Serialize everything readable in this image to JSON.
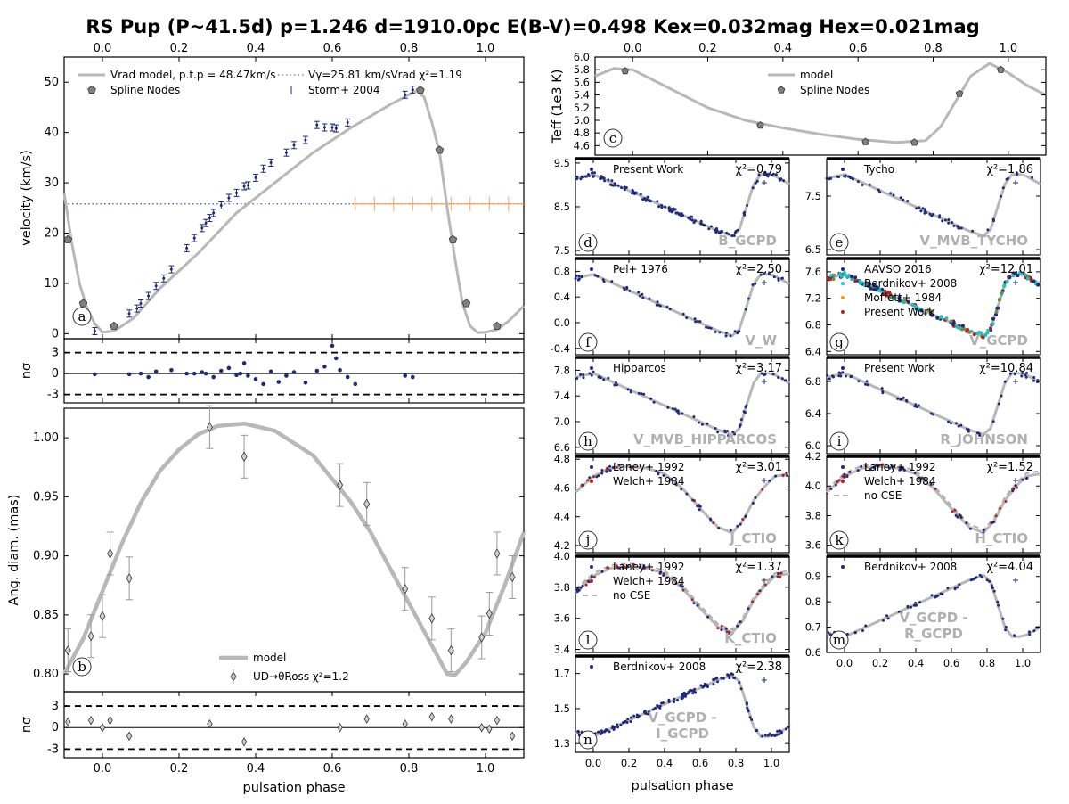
{
  "chart_data": {
    "type": "line",
    "title": "RS Pup (P~41.5d) p=1.246 d=1910.0pc E(B-V)=0.498 Kex=0.032mag Hex=0.021mag",
    "xlabel": "pulsation phase",
    "xlim": [
      -0.1,
      1.1
    ],
    "colors": {
      "model": "#b8b8b8",
      "data": "#1f2a7a",
      "accent": "#f4a460",
      "red": "#b22222",
      "cyan": "#20c0c0",
      "orange": "#ff9900",
      "node": "#808080"
    },
    "panels": [
      {
        "id": "a",
        "ylabel": "velocity (km/s)",
        "ylim": [
          -1,
          55
        ],
        "yticks": [
          0,
          10,
          20,
          30,
          40,
          50
        ],
        "legend": [
          "Vrad model, p.t.p = 48.47km/s",
          "Spline Nodes",
          "Vγ=25.81 km/sVrad χ²=1.19",
          "Storm+ 2004"
        ],
        "gamma": 25.81,
        "model": [
          [
            -0.1,
            28
          ],
          [
            -0.08,
            18
          ],
          [
            -0.06,
            10
          ],
          [
            -0.04,
            5
          ],
          [
            -0.02,
            2
          ],
          [
            0.0,
            0.3
          ],
          [
            0.03,
            0.5
          ],
          [
            0.08,
            3
          ],
          [
            0.15,
            9
          ],
          [
            0.25,
            16
          ],
          [
            0.35,
            24
          ],
          [
            0.45,
            30
          ],
          [
            0.55,
            36
          ],
          [
            0.65,
            41
          ],
          [
            0.75,
            45.5
          ],
          [
            0.8,
            47.5
          ],
          [
            0.82,
            48.3
          ],
          [
            0.84,
            47
          ],
          [
            0.86,
            42
          ],
          [
            0.88,
            36
          ],
          [
            0.9,
            25
          ],
          [
            0.92,
            15
          ],
          [
            0.94,
            6
          ],
          [
            0.96,
            1.5
          ],
          [
            0.98,
            0.2
          ],
          [
            1.0,
            0.3
          ],
          [
            1.03,
            0.8
          ],
          [
            1.06,
            2.5
          ],
          [
            1.1,
            5.5
          ]
        ],
        "nodes": [
          [
            -0.09,
            18.7
          ],
          [
            -0.05,
            6
          ],
          [
            0.03,
            1.5
          ],
          [
            0.83,
            48.4
          ],
          [
            0.88,
            36.5
          ],
          [
            0.915,
            18.7
          ],
          [
            0.95,
            6
          ],
          [
            1.03,
            1.5
          ]
        ],
        "data": [
          [
            -0.02,
            0.5
          ],
          [
            0.07,
            4
          ],
          [
            0.09,
            5
          ],
          [
            0.1,
            6
          ],
          [
            0.12,
            7.5
          ],
          [
            0.14,
            9.5
          ],
          [
            0.16,
            11
          ],
          [
            0.18,
            12.8
          ],
          [
            0.22,
            17
          ],
          [
            0.24,
            19
          ],
          [
            0.26,
            21
          ],
          [
            0.27,
            22
          ],
          [
            0.28,
            23
          ],
          [
            0.29,
            24
          ],
          [
            0.31,
            25.5
          ],
          [
            0.33,
            27
          ],
          [
            0.35,
            28
          ],
          [
            0.37,
            29.3
          ],
          [
            0.38,
            29.5
          ],
          [
            0.4,
            31
          ],
          [
            0.42,
            32.8
          ],
          [
            0.44,
            34
          ],
          [
            0.48,
            36
          ],
          [
            0.5,
            37.5
          ],
          [
            0.53,
            38.5
          ],
          [
            0.56,
            41.5
          ],
          [
            0.58,
            41
          ],
          [
            0.6,
            41
          ],
          [
            0.61,
            40.8
          ],
          [
            0.64,
            42
          ],
          [
            0.79,
            47.5
          ],
          [
            0.81,
            48.5
          ]
        ],
        "residuals": [
          [
            -0.02,
            -0.1
          ],
          [
            0.07,
            -0.1
          ],
          [
            0.1,
            0
          ],
          [
            0.12,
            -0.5
          ],
          [
            0.14,
            0.3
          ],
          [
            0.18,
            0.5
          ],
          [
            0.22,
            0
          ],
          [
            0.24,
            0
          ],
          [
            0.26,
            0.2
          ],
          [
            0.27,
            0
          ],
          [
            0.29,
            -0.5
          ],
          [
            0.31,
            0.4
          ],
          [
            0.33,
            0.8
          ],
          [
            0.35,
            -0.2
          ],
          [
            0.36,
            0
          ],
          [
            0.37,
            1.5
          ],
          [
            0.38,
            -0.3
          ],
          [
            0.4,
            -0.8
          ],
          [
            0.42,
            -1.5
          ],
          [
            0.44,
            0.3
          ],
          [
            0.46,
            -1.2
          ],
          [
            0.48,
            -0.3
          ],
          [
            0.5,
            0.2
          ],
          [
            0.53,
            -1.3
          ],
          [
            0.56,
            0.4
          ],
          [
            0.58,
            1
          ],
          [
            0.6,
            4
          ],
          [
            0.61,
            2.2
          ],
          [
            0.62,
            0.5
          ],
          [
            0.64,
            -0.5
          ],
          [
            0.66,
            -1.5
          ],
          [
            0.79,
            -0.3
          ],
          [
            0.81,
            -0.5
          ]
        ]
      },
      {
        "id": "b",
        "ylabel": "Ang. diam. (mas)",
        "ylim": [
          0.785,
          1.025
        ],
        "yticks": [
          0.8,
          0.85,
          0.9,
          0.95,
          1.0
        ],
        "legend": [
          "model",
          "UD→θRoss χ²=1.2"
        ],
        "model": [
          [
            -0.1,
            0.8
          ],
          [
            -0.05,
            0.83
          ],
          [
            0.0,
            0.87
          ],
          [
            0.05,
            0.91
          ],
          [
            0.1,
            0.945
          ],
          [
            0.15,
            0.972
          ],
          [
            0.2,
            0.99
          ],
          [
            0.25,
            1.003
          ],
          [
            0.3,
            1.01
          ],
          [
            0.37,
            1.012
          ],
          [
            0.45,
            1.006
          ],
          [
            0.55,
            0.985
          ],
          [
            0.65,
            0.945
          ],
          [
            0.7,
            0.92
          ],
          [
            0.75,
            0.89
          ],
          [
            0.8,
            0.86
          ],
          [
            0.85,
            0.83
          ],
          [
            0.9,
            0.8
          ],
          [
            0.92,
            0.799
          ],
          [
            0.95,
            0.81
          ],
          [
            1.0,
            0.835
          ],
          [
            1.05,
            0.875
          ],
          [
            1.1,
            0.92
          ]
        ],
        "data": [
          [
            -0.09,
            0.82
          ],
          [
            -0.03,
            0.832
          ],
          [
            0.0,
            0.849
          ],
          [
            0.02,
            0.902
          ],
          [
            0.07,
            0.881
          ],
          [
            0.28,
            1.009
          ],
          [
            0.37,
            0.984
          ],
          [
            0.62,
            0.96
          ],
          [
            0.69,
            0.944
          ],
          [
            0.79,
            0.872
          ],
          [
            0.86,
            0.847
          ],
          [
            0.91,
            0.82
          ],
          [
            0.99,
            0.831
          ],
          [
            1.01,
            0.851
          ],
          [
            1.03,
            0.902
          ],
          [
            1.07,
            0.882
          ]
        ],
        "residuals": [
          [
            -0.09,
            0.8
          ],
          [
            -0.03,
            1
          ],
          [
            0.0,
            0
          ],
          [
            0.02,
            1
          ],
          [
            0.07,
            -1.2
          ],
          [
            0.28,
            0.5
          ],
          [
            0.37,
            -2
          ],
          [
            0.62,
            0
          ],
          [
            0.69,
            1.2
          ],
          [
            0.79,
            0.5
          ],
          [
            0.86,
            1.5
          ],
          [
            0.91,
            1.2
          ],
          [
            0.99,
            0
          ],
          [
            1.01,
            -0.2
          ],
          [
            1.03,
            1
          ],
          [
            1.07,
            -1.2
          ]
        ]
      },
      {
        "id": "c",
        "ylabel": "Teff (1e3 K)",
        "ylim": [
          4.45,
          6.0
        ],
        "yticks": [
          4.6,
          4.8,
          5.0,
          5.2,
          5.4,
          5.6,
          5.8,
          6.0
        ],
        "legend": [
          "model",
          "Spline Nodes"
        ],
        "model": [
          [
            -0.1,
            5.7
          ],
          [
            -0.05,
            5.82
          ],
          [
            0.0,
            5.8
          ],
          [
            0.1,
            5.5
          ],
          [
            0.2,
            5.2
          ],
          [
            0.3,
            5.0
          ],
          [
            0.4,
            4.88
          ],
          [
            0.5,
            4.78
          ],
          [
            0.6,
            4.7
          ],
          [
            0.7,
            4.65
          ],
          [
            0.78,
            4.68
          ],
          [
            0.82,
            4.9
          ],
          [
            0.86,
            5.3
          ],
          [
            0.9,
            5.7
          ],
          [
            0.95,
            5.9
          ],
          [
            1.0,
            5.75
          ],
          [
            1.05,
            5.55
          ],
          [
            1.1,
            5.4
          ]
        ],
        "nodes": [
          [
            -0.02,
            5.78
          ],
          [
            0.34,
            4.92
          ],
          [
            0.62,
            4.66
          ],
          [
            0.75,
            4.65
          ],
          [
            0.87,
            5.42
          ],
          [
            0.98,
            5.8
          ]
        ]
      },
      {
        "id": "d",
        "ytop": 9.6,
        "ybot": 7.4,
        "yticks": [
          7.5,
          8.5,
          9.5
        ],
        "watermark": "B_GCPD",
        "chi": "χ²=0.79",
        "legend": [
          "Present Work"
        ]
      },
      {
        "id": "e",
        "ytop": 8.2,
        "ybot": 6.4,
        "yticks": [
          6.5,
          7.5
        ],
        "watermark": "V_MVB_TYCHO",
        "chi": "χ²=1.86",
        "legend": [
          "Tycho"
        ]
      },
      {
        "id": "f",
        "ytop": 1.0,
        "ybot": -0.5,
        "yticks": [
          -0.4,
          0.0,
          0.4,
          0.8
        ],
        "watermark": "V_W",
        "chi": "χ²=2.50",
        "legend": [
          "Pel+ 1976"
        ]
      },
      {
        "id": "g",
        "ytop": 7.8,
        "ybot": 6.35,
        "yticks": [
          6.4,
          6.8,
          7.2,
          7.6
        ],
        "watermark": "V_GCPD",
        "chi": "χ²=12.01",
        "legend": [
          "AAVSO 2016",
          "Berdnikov+ 2008",
          "Moffett+ 1984",
          "Present Work"
        ]
      },
      {
        "id": "h",
        "ytop": 8.0,
        "ybot": 6.5,
        "yticks": [
          6.6,
          7.0,
          7.4,
          7.8
        ],
        "watermark": "V_MVB_HIPPARCOS",
        "chi": "χ²=3.17",
        "legend": [
          "Hipparcos"
        ]
      },
      {
        "id": "i",
        "ytop": 7.1,
        "ybot": 5.9,
        "yticks": [
          6.0,
          6.4,
          6.8
        ],
        "watermark": "R_JOHNSON",
        "chi": "χ²=10.84",
        "legend": [
          "Present Work"
        ]
      },
      {
        "id": "j",
        "ytop": 4.82,
        "ybot": 4.15,
        "yticks": [
          4.2,
          4.4,
          4.6,
          4.8
        ],
        "watermark": "J_CTIO",
        "chi": "χ²=3.01",
        "legend": [
          "Laney+ 1992",
          "Welch+ 1984"
        ]
      },
      {
        "id": "k",
        "ytop": 4.2,
        "ybot": 3.55,
        "yticks": [
          3.6,
          3.8,
          4.0,
          4.2
        ],
        "watermark": "H_CTIO",
        "chi": "χ²=1.52",
        "legend": [
          "Laney+ 1992",
          "Welch+ 1984",
          "no CSE"
        ]
      },
      {
        "id": "l",
        "ytop": 4.0,
        "ybot": 3.38,
        "yticks": [
          3.4,
          3.6,
          3.8,
          4.0
        ],
        "watermark": "K_CTIO",
        "chi": "χ²=1.37",
        "legend": [
          "Laney+ 1992",
          "Welch+ 1984",
          "no CSE"
        ]
      },
      {
        "id": "m",
        "ytop": 0.98,
        "ybot": 0.6,
        "yticks": [
          0.6,
          0.7,
          0.8,
          0.9
        ],
        "watermark": "V_GCPD - R_GCPD",
        "chi": "χ²=4.04",
        "legend": [
          "Berdnikov+ 2008"
        ]
      },
      {
        "id": "n",
        "ytop": 1.8,
        "ybot": 1.25,
        "yticks": [
          1.3,
          1.5,
          1.7
        ],
        "watermark": "V_GCPD - I_GCPD",
        "chi": "χ²=2.38",
        "legend": [
          "Berdnikov+ 2008"
        ]
      }
    ],
    "xticks_main": [
      0.0,
      0.2,
      0.4,
      0.6,
      0.8,
      1.0
    ],
    "xticks_small": [
      0.0,
      0.2,
      0.4,
      0.6,
      0.8,
      1.0
    ],
    "residual_yticks": [
      -3,
      0,
      3
    ],
    "residual_label": "nσ",
    "lightcurve_shape": [
      [
        -0.1,
        0.15
      ],
      [
        0.0,
        0.1
      ],
      [
        0.1,
        0.2
      ],
      [
        0.2,
        0.3
      ],
      [
        0.3,
        0.4
      ],
      [
        0.4,
        0.5
      ],
      [
        0.5,
        0.6
      ],
      [
        0.6,
        0.7
      ],
      [
        0.7,
        0.8
      ],
      [
        0.78,
        0.86
      ],
      [
        0.82,
        0.78
      ],
      [
        0.86,
        0.5
      ],
      [
        0.9,
        0.22
      ],
      [
        0.94,
        0.1
      ],
      [
        0.98,
        0.1
      ],
      [
        1.02,
        0.12
      ],
      [
        1.1,
        0.22
      ]
    ],
    "nir_shape": [
      [
        -0.1,
        0.35
      ],
      [
        0.0,
        0.15
      ],
      [
        0.1,
        0.05
      ],
      [
        0.2,
        0.03
      ],
      [
        0.3,
        0.05
      ],
      [
        0.4,
        0.12
      ],
      [
        0.5,
        0.3
      ],
      [
        0.6,
        0.55
      ],
      [
        0.7,
        0.78
      ],
      [
        0.78,
        0.85
      ],
      [
        0.84,
        0.7
      ],
      [
        0.9,
        0.45
      ],
      [
        0.96,
        0.28
      ],
      [
        1.02,
        0.15
      ],
      [
        1.1,
        0.12
      ]
    ]
  }
}
